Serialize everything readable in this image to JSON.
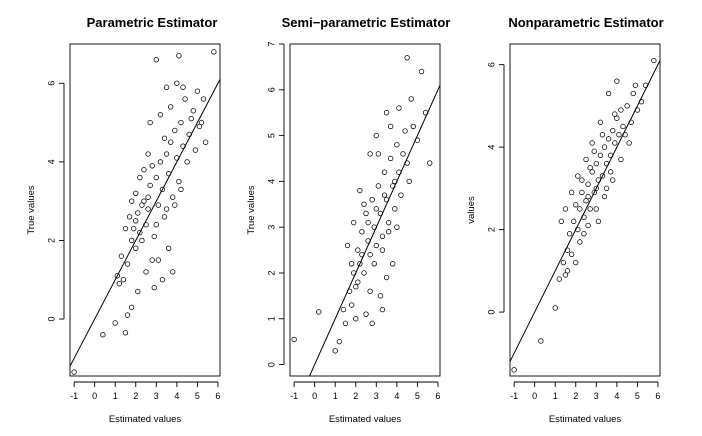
{
  "chart_data": [
    {
      "type": "scatter",
      "title": "Parametric  Estimator",
      "xlabel": "Estimated values",
      "ylabel": "True values",
      "xlim": [
        -1.2,
        6.1
      ],
      "ylim": [
        -1.45,
        7.0
      ],
      "xticks": [
        -1,
        0,
        1,
        2,
        3,
        4,
        5,
        6
      ],
      "yticks": [
        0,
        2,
        4,
        6
      ],
      "fit_line": {
        "slope": 1.0,
        "intercept": 0.0
      },
      "points": [
        [
          -1.0,
          -1.35
        ],
        [
          0.4,
          -0.4
        ],
        [
          1.0,
          -0.1
        ],
        [
          1.5,
          -0.35
        ],
        [
          1.6,
          0.1
        ],
        [
          1.8,
          0.3
        ],
        [
          1.2,
          0.9
        ],
        [
          1.4,
          1.0
        ],
        [
          1.3,
          1.6
        ],
        [
          1.6,
          1.4
        ],
        [
          1.8,
          2.0
        ],
        [
          1.9,
          2.3
        ],
        [
          2.0,
          1.8
        ],
        [
          2.1,
          2.7
        ],
        [
          2.2,
          2.2
        ],
        [
          2.3,
          2.0
        ],
        [
          2.4,
          3.0
        ],
        [
          2.5,
          2.4
        ],
        [
          2.6,
          2.8
        ],
        [
          2.7,
          3.4
        ],
        [
          2.8,
          1.5
        ],
        [
          2.9,
          2.1
        ],
        [
          3.0,
          3.6
        ],
        [
          3.1,
          2.9
        ],
        [
          3.2,
          4.0
        ],
        [
          3.3,
          3.3
        ],
        [
          3.4,
          2.6
        ],
        [
          3.5,
          4.2
        ],
        [
          3.6,
          3.7
        ],
        [
          3.7,
          4.5
        ],
        [
          3.8,
          3.1
        ],
        [
          3.9,
          4.8
        ],
        [
          4.0,
          4.1
        ],
        [
          4.1,
          3.5
        ],
        [
          4.2,
          5.0
        ],
        [
          4.3,
          4.4
        ],
        [
          4.4,
          5.6
        ],
        [
          4.5,
          4.0
        ],
        [
          4.6,
          4.7
        ],
        [
          4.8,
          5.3
        ],
        [
          4.9,
          4.3
        ],
        [
          5.0,
          5.8
        ],
        [
          5.2,
          5.0
        ],
        [
          5.4,
          4.5
        ],
        [
          5.3,
          5.6
        ],
        [
          5.8,
          6.8
        ],
        [
          3.0,
          6.6
        ],
        [
          4.1,
          6.7
        ],
        [
          3.5,
          5.9
        ],
        [
          2.7,
          5.0
        ],
        [
          2.6,
          4.2
        ],
        [
          2.2,
          3.6
        ],
        [
          2.0,
          3.2
        ],
        [
          1.7,
          2.6
        ],
        [
          2.5,
          1.2
        ],
        [
          2.9,
          0.8
        ],
        [
          3.3,
          1.0
        ],
        [
          3.6,
          1.8
        ],
        [
          3.8,
          1.2
        ],
        [
          3.1,
          1.5
        ],
        [
          2.1,
          0.7
        ],
        [
          1.5,
          2.3
        ],
        [
          1.1,
          1.1
        ],
        [
          2.4,
          3.8
        ],
        [
          2.8,
          3.9
        ],
        [
          3.2,
          5.2
        ],
        [
          3.7,
          5.4
        ],
        [
          4.0,
          6.0
        ],
        [
          4.3,
          5.9
        ],
        [
          4.7,
          5.1
        ],
        [
          5.1,
          4.9
        ],
        [
          3.9,
          2.9
        ],
        [
          4.2,
          3.3
        ],
        [
          3.4,
          4.6
        ],
        [
          2.3,
          2.9
        ],
        [
          2.6,
          3.1
        ],
        [
          3.0,
          2.4
        ],
        [
          3.5,
          2.8
        ],
        [
          2.0,
          2.5
        ],
        [
          1.8,
          3.0
        ]
      ]
    },
    {
      "type": "scatter",
      "title": "Semi−parametric  Estimator",
      "xlabel": "Estimated values",
      "ylabel": "True values",
      "xlim": [
        -1.2,
        6.1
      ],
      "ylim": [
        -0.25,
        7.0
      ],
      "xticks": [
        -1,
        0,
        1,
        2,
        3,
        4,
        5,
        6
      ],
      "yticks": [
        0,
        1,
        2,
        3,
        4,
        5,
        6,
        7
      ],
      "fit_line": {
        "slope": 1.0,
        "intercept": 0.0
      },
      "points": [
        [
          -1.0,
          0.55
        ],
        [
          0.2,
          1.15
        ],
        [
          1.0,
          0.3
        ],
        [
          1.2,
          0.5
        ],
        [
          1.5,
          0.9
        ],
        [
          1.7,
          1.6
        ],
        [
          1.8,
          1.3
        ],
        [
          1.9,
          2.0
        ],
        [
          2.0,
          1.7
        ],
        [
          2.1,
          2.5
        ],
        [
          2.2,
          2.2
        ],
        [
          2.3,
          2.9
        ],
        [
          2.4,
          2.0
        ],
        [
          2.5,
          3.3
        ],
        [
          2.6,
          2.7
        ],
        [
          2.7,
          2.4
        ],
        [
          2.8,
          3.6
        ],
        [
          2.9,
          3.0
        ],
        [
          3.0,
          2.6
        ],
        [
          3.1,
          3.9
        ],
        [
          3.2,
          3.3
        ],
        [
          3.3,
          2.8
        ],
        [
          3.4,
          4.2
        ],
        [
          3.5,
          3.6
        ],
        [
          3.6,
          3.1
        ],
        [
          3.7,
          4.5
        ],
        [
          3.8,
          3.9
        ],
        [
          3.9,
          3.4
        ],
        [
          4.0,
          4.8
        ],
        [
          4.1,
          4.2
        ],
        [
          4.2,
          3.7
        ],
        [
          4.4,
          5.1
        ],
        [
          4.5,
          4.4
        ],
        [
          4.7,
          5.8
        ],
        [
          4.8,
          5.2
        ],
        [
          5.0,
          4.9
        ],
        [
          5.2,
          6.4
        ],
        [
          5.4,
          5.5
        ],
        [
          5.6,
          4.4
        ],
        [
          4.5,
          6.7
        ],
        [
          3.5,
          5.5
        ],
        [
          3.0,
          5.0
        ],
        [
          2.7,
          4.6
        ],
        [
          2.2,
          3.8
        ],
        [
          1.9,
          3.1
        ],
        [
          1.6,
          2.6
        ],
        [
          2.5,
          1.1
        ],
        [
          2.8,
          0.9
        ],
        [
          3.2,
          1.5
        ],
        [
          3.5,
          1.9
        ],
        [
          3.8,
          2.2
        ],
        [
          2.0,
          1.0
        ],
        [
          1.4,
          1.2
        ],
        [
          2.9,
          2.2
        ],
        [
          3.3,
          2.5
        ],
        [
          3.6,
          2.9
        ],
        [
          3.1,
          4.6
        ],
        [
          3.7,
          5.2
        ],
        [
          4.1,
          5.6
        ],
        [
          4.3,
          4.6
        ],
        [
          3.9,
          4.0
        ],
        [
          2.4,
          3.5
        ],
        [
          2.6,
          3.1
        ],
        [
          3.0,
          3.4
        ],
        [
          3.4,
          3.7
        ],
        [
          2.3,
          2.4
        ],
        [
          2.1,
          1.8
        ],
        [
          1.8,
          2.2
        ],
        [
          4.0,
          3.0
        ],
        [
          4.6,
          4.0
        ],
        [
          2.7,
          1.6
        ],
        [
          3.3,
          1.2
        ]
      ]
    },
    {
      "type": "scatter",
      "title": "Nonparametric  Estimator",
      "xlabel": "Estimated values",
      "ylabel": "values",
      "xlim": [
        -1.2,
        6.1
      ],
      "ylim": [
        -1.55,
        6.5
      ],
      "xticks": [
        -1,
        0,
        1,
        2,
        3,
        4,
        5,
        6
      ],
      "yticks": [
        0,
        2,
        4,
        6
      ],
      "fit_line": {
        "slope": 1.0,
        "intercept": 0.0
      },
      "points": [
        [
          -1.0,
          -1.4
        ],
        [
          0.3,
          -0.7
        ],
        [
          1.0,
          0.1
        ],
        [
          1.2,
          0.8
        ],
        [
          1.4,
          1.2
        ],
        [
          1.5,
          0.9
        ],
        [
          1.6,
          1.5
        ],
        [
          1.7,
          1.9
        ],
        [
          1.8,
          1.4
        ],
        [
          1.9,
          2.2
        ],
        [
          2.0,
          2.6
        ],
        [
          2.1,
          2.0
        ],
        [
          2.2,
          2.5
        ],
        [
          2.3,
          2.9
        ],
        [
          2.4,
          2.3
        ],
        [
          2.5,
          2.7
        ],
        [
          2.6,
          3.1
        ],
        [
          2.7,
          2.5
        ],
        [
          2.8,
          3.4
        ],
        [
          2.9,
          2.9
        ],
        [
          3.0,
          3.6
        ],
        [
          3.1,
          3.2
        ],
        [
          3.2,
          3.8
        ],
        [
          3.3,
          3.3
        ],
        [
          3.4,
          4.0
        ],
        [
          3.5,
          3.6
        ],
        [
          3.6,
          4.2
        ],
        [
          3.7,
          3.8
        ],
        [
          3.8,
          4.4
        ],
        [
          3.9,
          4.1
        ],
        [
          4.0,
          4.7
        ],
        [
          4.1,
          4.3
        ],
        [
          4.2,
          4.9
        ],
        [
          4.3,
          4.5
        ],
        [
          4.5,
          5.0
        ],
        [
          4.7,
          4.6
        ],
        [
          4.9,
          5.5
        ],
        [
          5.2,
          5.1
        ],
        [
          5.4,
          5.5
        ],
        [
          5.8,
          6.1
        ],
        [
          4.0,
          5.6
        ],
        [
          3.6,
          5.3
        ],
        [
          3.2,
          4.6
        ],
        [
          2.8,
          4.1
        ],
        [
          2.5,
          3.7
        ],
        [
          2.1,
          3.3
        ],
        [
          1.8,
          2.9
        ],
        [
          1.5,
          2.5
        ],
        [
          2.2,
          1.7
        ],
        [
          2.6,
          2.1
        ],
        [
          3.0,
          2.5
        ],
        [
          3.4,
          2.8
        ],
        [
          3.8,
          3.2
        ],
        [
          2.4,
          1.9
        ],
        [
          2.0,
          1.2
        ],
        [
          3.1,
          2.2
        ],
        [
          3.5,
          3.0
        ],
        [
          4.2,
          3.7
        ],
        [
          4.6,
          4.1
        ],
        [
          2.7,
          3.5
        ],
        [
          3.3,
          4.3
        ],
        [
          3.9,
          4.8
        ],
        [
          2.9,
          3.9
        ],
        [
          1.3,
          2.2
        ],
        [
          1.6,
          1.0
        ],
        [
          2.3,
          3.2
        ],
        [
          3.7,
          3.4
        ],
        [
          4.4,
          4.3
        ],
        [
          5.0,
          4.9
        ],
        [
          4.8,
          5.3
        ],
        [
          3.0,
          3.0
        ],
        [
          2.6,
          2.8
        ]
      ]
    }
  ]
}
